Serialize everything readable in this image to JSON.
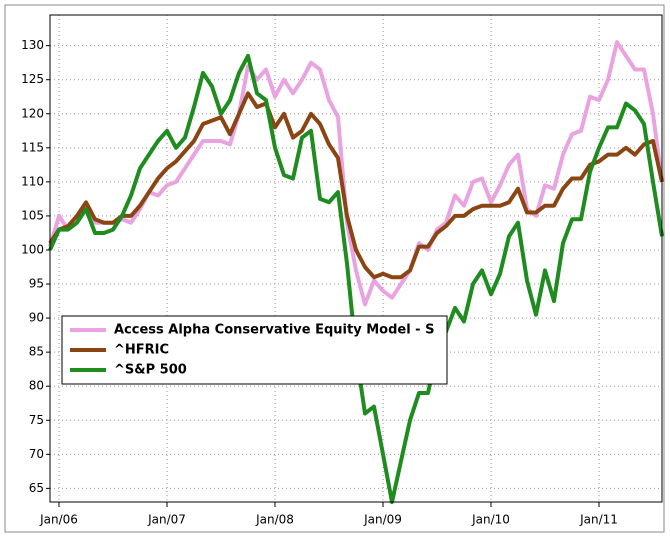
{
  "chart_data": {
    "type": "line",
    "categories": [
      null,
      "Jan/06",
      null,
      null,
      null,
      null,
      null,
      null,
      null,
      null,
      null,
      null,
      null,
      "Jan/07",
      null,
      null,
      null,
      null,
      null,
      null,
      null,
      null,
      null,
      null,
      null,
      "Jan/08",
      null,
      null,
      null,
      null,
      null,
      null,
      null,
      null,
      null,
      null,
      null,
      "Jan/09",
      null,
      null,
      null,
      null,
      null,
      null,
      null,
      null,
      null,
      null,
      null,
      "Jan/10",
      null,
      null,
      null,
      null,
      null,
      null,
      null,
      null,
      null,
      null,
      null,
      "Jan/11",
      null,
      null,
      null,
      null,
      null,
      null,
      null
    ],
    "series": [
      {
        "name": "Access Alpha Conservative Equity Model - S",
        "color": "#e9a3e1",
        "values": [
          100.5,
          105,
          103,
          104,
          106.5,
          104,
          104,
          104,
          104.5,
          104,
          106,
          108.5,
          108,
          109.5,
          110,
          112,
          114,
          116,
          116,
          116,
          115.5,
          120,
          127,
          125,
          126.5,
          122.5,
          125,
          123,
          125,
          127.5,
          126.5,
          122,
          119.5,
          104,
          97,
          92,
          95.5,
          94,
          93,
          95,
          97,
          101,
          100,
          103,
          104,
          108,
          106.5,
          110,
          110.5,
          107,
          109.5,
          112.5,
          114,
          106,
          105,
          109.5,
          109,
          114,
          117,
          117.5,
          122.5,
          122,
          125,
          130.5,
          128.5,
          126.5,
          126.5,
          120,
          110
        ]
      },
      {
        "name": "^HFRIC",
        "color": "#8b4513",
        "values": [
          101,
          103,
          103.5,
          105,
          107,
          104.5,
          104,
          104,
          105,
          105,
          106.5,
          108.5,
          110.5,
          112,
          113,
          114.5,
          116,
          118.5,
          119,
          119.5,
          117,
          120,
          123,
          121,
          121.5,
          118,
          120,
          116.5,
          117.5,
          120,
          118.5,
          115.5,
          113.5,
          105,
          100,
          97.5,
          96,
          96.5,
          96,
          96,
          97,
          100.5,
          100.5,
          102.5,
          103.5,
          105,
          105,
          106,
          106.5,
          106.5,
          106.5,
          107,
          109,
          105.5,
          105.5,
          106.5,
          106.5,
          109,
          110.5,
          110.5,
          112.5,
          113,
          114,
          114,
          115,
          114,
          115.5,
          116,
          110
        ]
      },
      {
        "name": "^S&P 500",
        "color": "#1e8c1e",
        "values": [
          100,
          103,
          103,
          104,
          106,
          102.5,
          102.5,
          103,
          105,
          108,
          112,
          114,
          116,
          117.5,
          115,
          116.5,
          121,
          126,
          124,
          120,
          122,
          126,
          128.5,
          123,
          122,
          115,
          111,
          110.5,
          116.5,
          117.5,
          107.5,
          107,
          108.5,
          98,
          85,
          76,
          77,
          70,
          63,
          69,
          75,
          79,
          79,
          85,
          88,
          91.5,
          89.5,
          95,
          97,
          93.5,
          96.5,
          102,
          104,
          95.5,
          90.5,
          97,
          92.5,
          101,
          104.5,
          104.5,
          111.5,
          115,
          118,
          118,
          121.5,
          120.5,
          118.5,
          110,
          102
        ]
      }
    ],
    "ylim": [
      63,
      134.5
    ],
    "yticks": [
      65,
      70,
      75,
      80,
      85,
      90,
      95,
      100,
      105,
      110,
      115,
      120,
      125,
      130
    ],
    "grid": true,
    "legend": "center-left"
  }
}
